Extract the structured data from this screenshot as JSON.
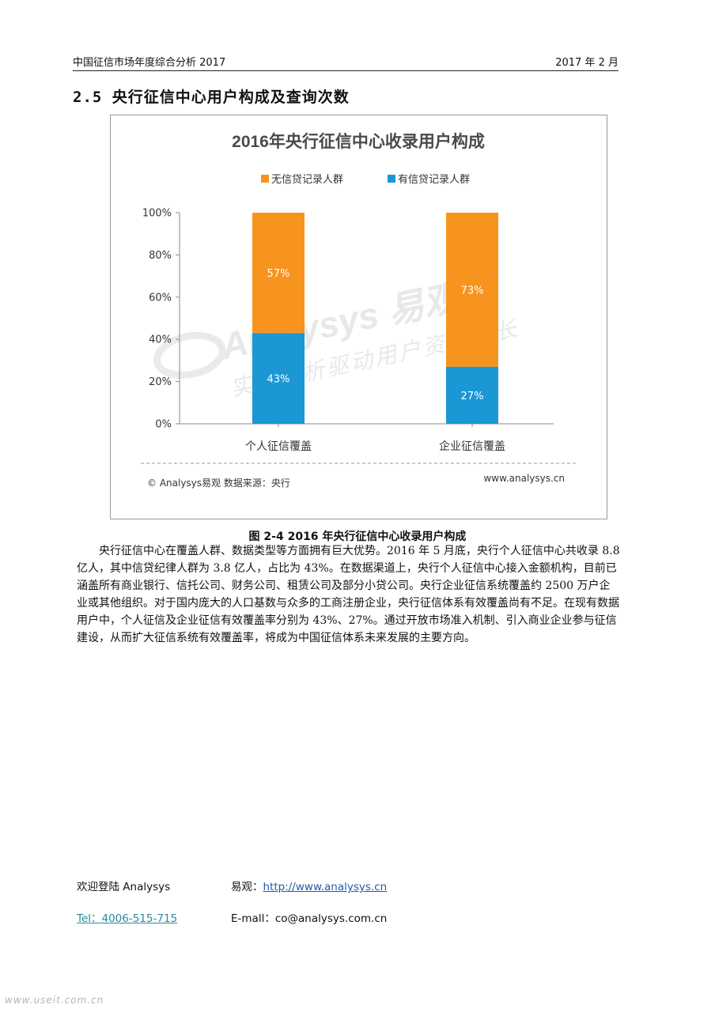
{
  "header": {
    "doc_title": "中国征信市场年度综合分析 2017",
    "date": "2017 年 2 月"
  },
  "section_title": "2.5 央行征信中心用户构成及查询次数",
  "figure": {
    "caption": "图 2-4 2016 年央行征信中心收录用户构成",
    "footer_source": "© Analysys易观  数据来源：央行",
    "footer_url": "www.analysys.cn",
    "watermark": {
      "brand": "Analysys 易观",
      "slogan": "实时分析驱动用户资产成长"
    }
  },
  "chart_data": {
    "type": "bar",
    "stacked": true,
    "title": "2016年央行征信中心收录用户构成",
    "categories": [
      "个人征信覆盖",
      "企业征信覆盖"
    ],
    "series": [
      {
        "name": "有信贷记录人群",
        "values": [
          43,
          27
        ],
        "labels": [
          "43%",
          "27%"
        ],
        "color": "#1b97d6"
      },
      {
        "name": "无信贷记录人群",
        "values": [
          57,
          73
        ],
        "labels": [
          "57%",
          "73%"
        ],
        "color": "#f7941d"
      }
    ],
    "ylim": [
      0,
      100
    ],
    "y_ticks": [
      "0%",
      "20%",
      "40%",
      "60%",
      "80%",
      "100%"
    ],
    "legend": "top",
    "grid": false
  },
  "body": {
    "paragraph": "央行征信中心在覆盖人群、数据类型等方面拥有巨大优势。2016 年 5 月底，央行个人征信中心共收录 8.8 亿人，其中信贷纪律人群为 3.8 亿人，占比为 43%。在数据渠道上，央行个人征信中心接入金额机构，目前已涵盖所有商业银行、信托公司、财务公司、租赁公司及部分小贷公司。央行企业征信系统覆盖约 2500 万户企业或其他组织。对于国内庞大的人口基数与众多的工商注册企业，央行征信体系有效覆盖尚有不足。在现有数据用户中，个人征信及企业征信有效覆盖率分别为 43%、27%。通过开放市场准入机制、引入商业企业参与征信建设，从而扩大征信系统有效覆盖率，将成为中国征信体系未来发展的主要方向。"
  },
  "footer": {
    "welcome": "欢迎登陆 Analysys",
    "site_label": "易观：",
    "site_url": "http://www.analysys.cn",
    "tel": "Tel：4006-515-715",
    "email": "E-mall：co@analysys.com.cn"
  },
  "page_watermark": "www.useit.com.cn"
}
